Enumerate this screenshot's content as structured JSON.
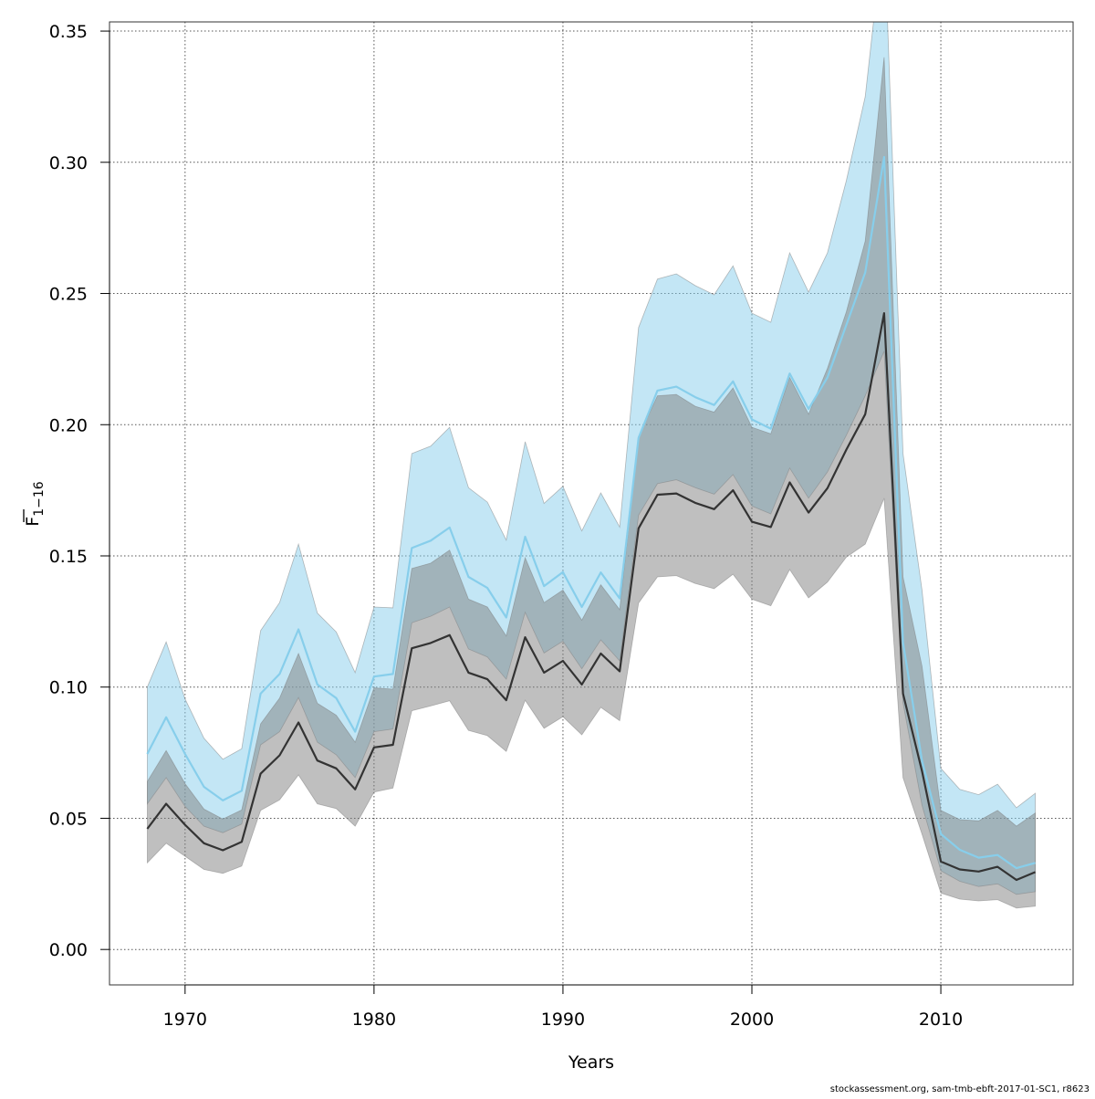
{
  "chart_data": {
    "type": "area",
    "xlabel": "Years",
    "ylabel_main": "F",
    "ylabel_sub": "1−16",
    "xlim": [
      1966,
      2017
    ],
    "ylim": [
      -0.0135,
      0.3535
    ],
    "x_ticks": [
      1970,
      1980,
      1990,
      2000,
      2010
    ],
    "y_ticks": [
      0.0,
      0.05,
      0.1,
      0.15,
      0.2,
      0.25,
      0.3,
      0.35
    ],
    "y_tick_labels": [
      "0.00",
      "0.05",
      "0.10",
      "0.15",
      "0.20",
      "0.25",
      "0.30",
      "0.35"
    ],
    "grid": true,
    "credit": "stockassessment.org, sam-tmb-ebft-2017-01-SC1, r8623",
    "colors": {
      "blue_line": "#87ceeb",
      "blue_band": "#87ceeb",
      "dark_line": "#333333",
      "dark_band": "#808080",
      "grid": "#555555"
    },
    "x": [
      1968,
      1969,
      1970,
      1971,
      1972,
      1973,
      1974,
      1975,
      1976,
      1977,
      1978,
      1979,
      1980,
      1981,
      1982,
      1983,
      1984,
      1985,
      1986,
      1987,
      1988,
      1989,
      1990,
      1991,
      1992,
      1993,
      1994,
      1995,
      1996,
      1997,
      1998,
      1999,
      2000,
      2001,
      2002,
      2003,
      2004,
      2005,
      2006,
      2007,
      2008,
      2009,
      2010,
      2011,
      2012,
      2013,
      2014,
      2015
    ],
    "series": [
      {
        "color_key": "blue",
        "values": [
          0.0745,
          0.0885,
          0.0745,
          0.062,
          0.0568,
          0.0605,
          0.0975,
          0.105,
          0.122,
          0.101,
          0.0958,
          0.083,
          0.104,
          0.105,
          0.153,
          0.1558,
          0.1608,
          0.142,
          0.1378,
          0.1265,
          0.1573,
          0.1385,
          0.1438,
          0.1305,
          0.1437,
          0.1338,
          0.195,
          0.213,
          0.2145,
          0.2105,
          0.2075,
          0.2165,
          0.202,
          0.1985,
          0.2195,
          0.206,
          0.218,
          0.238,
          0.258,
          0.302,
          0.117,
          0.072,
          0.044,
          0.038,
          0.035,
          0.036,
          0.031,
          0.033
        ],
        "lower": [
          0.0555,
          0.0655,
          0.0545,
          0.047,
          0.0445,
          0.0478,
          0.078,
          0.083,
          0.096,
          0.079,
          0.0742,
          0.0655,
          0.083,
          0.084,
          0.1245,
          0.127,
          0.1305,
          0.1145,
          0.1115,
          0.103,
          0.1285,
          0.113,
          0.1175,
          0.107,
          0.118,
          0.11,
          0.1655,
          0.1775,
          0.179,
          0.176,
          0.1735,
          0.181,
          0.169,
          0.166,
          0.1835,
          0.172,
          0.182,
          0.196,
          0.211,
          0.228,
          0.094,
          0.055,
          0.03,
          0.026,
          0.024,
          0.025,
          0.021,
          0.022
        ],
        "upper": [
          0.1,
          0.1172,
          0.0955,
          0.0805,
          0.0725,
          0.0765,
          0.1215,
          0.1322,
          0.1545,
          0.1282,
          0.121,
          0.1055,
          0.1305,
          0.1302,
          0.189,
          0.1918,
          0.199,
          0.176,
          0.1705,
          0.156,
          0.1935,
          0.17,
          0.1765,
          0.1595,
          0.174,
          0.161,
          0.237,
          0.2555,
          0.2575,
          0.253,
          0.2495,
          0.2605,
          0.2425,
          0.239,
          0.2655,
          0.2505,
          0.2655,
          0.293,
          0.325,
          0.39,
          0.189,
          0.137,
          0.069,
          0.061,
          0.059,
          0.063,
          0.054,
          0.0595
        ]
      },
      {
        "color_key": "dark",
        "values": [
          0.046,
          0.0555,
          0.0475,
          0.0405,
          0.0378,
          0.041,
          0.067,
          0.074,
          0.0865,
          0.072,
          0.069,
          0.061,
          0.077,
          0.078,
          0.1148,
          0.1168,
          0.1198,
          0.1055,
          0.103,
          0.095,
          0.119,
          0.1055,
          0.11,
          0.101,
          0.1128,
          0.106,
          0.1605,
          0.1733,
          0.1738,
          0.1702,
          0.1678,
          0.175,
          0.163,
          0.161,
          0.178,
          0.1665,
          0.1758,
          0.1905,
          0.204,
          0.2425,
          0.0975,
          0.068,
          0.0335,
          0.0305,
          0.0297,
          0.0315,
          0.0265,
          0.0295
        ],
        "lower": [
          0.033,
          0.0405,
          0.0355,
          0.0305,
          0.029,
          0.0318,
          0.053,
          0.057,
          0.0665,
          0.0555,
          0.0537,
          0.047,
          0.06,
          0.0615,
          0.091,
          0.0928,
          0.0948,
          0.0835,
          0.0815,
          0.0755,
          0.095,
          0.0843,
          0.0887,
          0.0818,
          0.0923,
          0.0872,
          0.132,
          0.142,
          0.1425,
          0.1395,
          0.1375,
          0.143,
          0.1335,
          0.131,
          0.1448,
          0.134,
          0.14,
          0.1495,
          0.1545,
          0.172,
          0.0655,
          0.044,
          0.0215,
          0.0192,
          0.0185,
          0.019,
          0.0158,
          0.0165
        ],
        "upper": [
          0.064,
          0.0758,
          0.0632,
          0.0535,
          0.0497,
          0.0532,
          0.086,
          0.0958,
          0.1128,
          0.0938,
          0.0893,
          0.079,
          0.0997,
          0.0992,
          0.1452,
          0.1472,
          0.1522,
          0.1335,
          0.1305,
          0.1195,
          0.1493,
          0.1322,
          0.137,
          0.1255,
          0.139,
          0.1295,
          0.1955,
          0.211,
          0.2115,
          0.207,
          0.2048,
          0.214,
          0.199,
          0.1965,
          0.218,
          0.204,
          0.2215,
          0.243,
          0.27,
          0.34,
          0.142,
          0.108,
          0.053,
          0.0495,
          0.049,
          0.053,
          0.047,
          0.052
        ]
      }
    ]
  }
}
